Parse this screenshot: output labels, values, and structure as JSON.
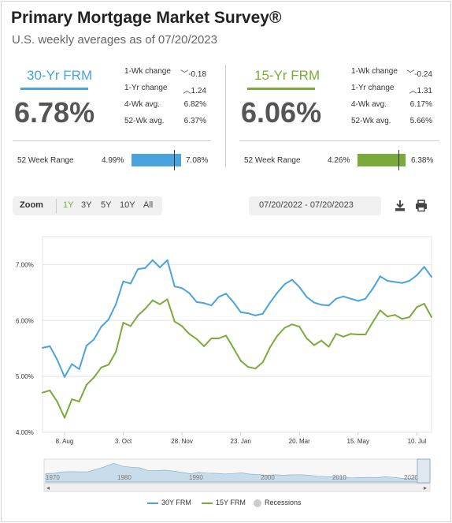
{
  "header": {
    "title": "Primary Mortgage Market Survey®",
    "subtitle": "U.S. weekly averages as of 07/20/2023"
  },
  "rate30": {
    "name": "30-Yr FRM",
    "color": "#4aa3df",
    "rate": "6.78%",
    "one_wk_label": "1-Wk change",
    "one_wk_value": "-0.18",
    "one_wk_dir": "down",
    "one_yr_label": "1-Yr change",
    "one_yr_value": "1.24",
    "one_yr_dir": "up",
    "four_wk_label": "4-Wk avg.",
    "four_wk_value": "6.82%",
    "fifty_two_wk_label": "52-Wk avg.",
    "fifty_two_wk_value": "6.37%",
    "range_label": "52 Week Range",
    "range_low": "4.99%",
    "range_high": "7.08%",
    "range_current_fraction": 0.86
  },
  "rate15": {
    "name": "15-Yr FRM",
    "color": "#7aab3a",
    "rate": "6.06%",
    "one_wk_label": "1-Wk change",
    "one_wk_value": "-0.24",
    "one_wk_dir": "down",
    "one_yr_label": "1-Yr change",
    "one_yr_value": "1.31",
    "one_yr_dir": "up",
    "four_wk_label": "4-Wk avg.",
    "four_wk_value": "6.17%",
    "fifty_two_wk_label": "52-Wk avg.",
    "fifty_two_wk_value": "5.66%",
    "range_label": "52 Week Range",
    "range_low": "4.26%",
    "range_high": "6.38%",
    "range_current_fraction": 0.85
  },
  "toolbar": {
    "zoom_label": "Zoom",
    "zoom_options": [
      "1Y",
      "3Y",
      "5Y",
      "10Y",
      "All"
    ],
    "zoom_active": "1Y",
    "date_range": "07/20/2022 - 07/20/2023",
    "download_icon": "download-icon",
    "print_icon": "print-icon"
  },
  "chart_data": {
    "type": "line",
    "ylim": [
      4.0,
      7.5
    ],
    "ytick_labels": [
      "4.00%",
      "5.00%",
      "6.00%",
      "7.00%"
    ],
    "yticks": [
      4.0,
      5.0,
      6.0,
      7.0
    ],
    "xtick_labels": [
      "8. Aug",
      "3. Oct",
      "28. Nov",
      "23. Jan",
      "20. Mar",
      "15. May",
      "10. Jul"
    ],
    "xtick_weeks": [
      3,
      11,
      19,
      27,
      35,
      43,
      51
    ],
    "grid": true,
    "series": [
      {
        "name": "30Y FRM",
        "color": "#4aa3df",
        "values": [
          5.51,
          5.54,
          5.3,
          4.99,
          5.22,
          5.13,
          5.55,
          5.66,
          5.89,
          6.02,
          6.29,
          6.7,
          6.66,
          6.92,
          6.94,
          7.08,
          6.95,
          7.08,
          6.61,
          6.58,
          6.49,
          6.33,
          6.31,
          6.27,
          6.42,
          6.48,
          6.33,
          6.15,
          6.13,
          6.09,
          6.12,
          6.32,
          6.5,
          6.65,
          6.73,
          6.6,
          6.42,
          6.32,
          6.28,
          6.27,
          6.39,
          6.43,
          6.39,
          6.35,
          6.39,
          6.57,
          6.79,
          6.71,
          6.69,
          6.67,
          6.71,
          6.81,
          6.96,
          6.78
        ]
      },
      {
        "name": "15Y FRM",
        "color": "#7aab3a",
        "values": [
          4.71,
          4.75,
          4.55,
          4.26,
          4.59,
          4.55,
          4.85,
          4.98,
          5.16,
          5.21,
          5.44,
          5.96,
          5.9,
          6.09,
          6.21,
          6.36,
          6.29,
          6.38,
          5.98,
          5.9,
          5.76,
          5.67,
          5.54,
          5.68,
          5.68,
          5.73,
          5.51,
          5.28,
          5.17,
          5.14,
          5.25,
          5.52,
          5.73,
          5.87,
          5.93,
          5.89,
          5.68,
          5.56,
          5.64,
          5.53,
          5.76,
          5.71,
          5.76,
          5.75,
          5.75,
          5.97,
          6.18,
          6.07,
          6.1,
          6.03,
          6.06,
          6.24,
          6.3,
          6.06
        ]
      }
    ],
    "navigator_labels": [
      "1970",
      "1980",
      "1990",
      "2000",
      "2010",
      "2020"
    ]
  },
  "legend": {
    "items": [
      {
        "label": "30Y FRM",
        "color": "#4aa3df"
      },
      {
        "label": "15Y FRM",
        "color": "#7aab3a"
      },
      {
        "label": "Recessions",
        "color": "#cccccc"
      }
    ]
  }
}
